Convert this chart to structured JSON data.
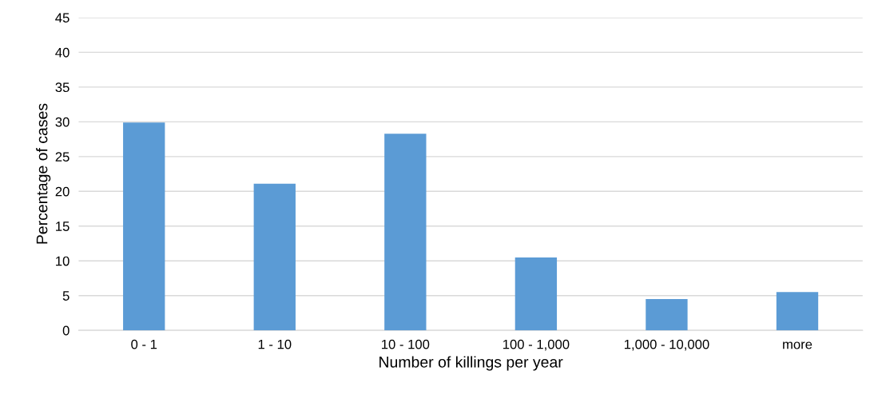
{
  "chart_data": {
    "type": "bar",
    "xlabel": "Number of killings per year",
    "ylabel": "Percentage of cases",
    "categories": [
      "0 - 1",
      "1 - 10",
      "10 - 100",
      "100 - 1,000",
      "1,000 - 10,000",
      "more"
    ],
    "values": [
      29.9,
      21.1,
      28.3,
      10.5,
      4.5,
      5.5
    ],
    "color": "#5b9bd5",
    "ylim": [
      0,
      45
    ],
    "yticks": [
      0,
      5,
      10,
      15,
      20,
      25,
      30,
      35,
      40,
      45
    ],
    "grid": "y",
    "legend": false
  }
}
